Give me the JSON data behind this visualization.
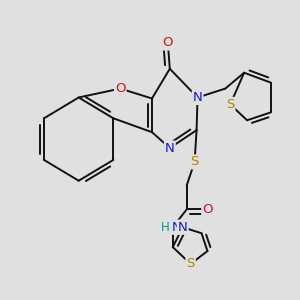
{
  "bg_color": "#e0e0e0",
  "bond_color": "#111111",
  "bond_width": 1.4,
  "colors": {
    "C": "#111111",
    "N": "#1a1acc",
    "O": "#cc1a1a",
    "S": "#aa8800",
    "H": "#109090"
  },
  "fig_width": 3.0,
  "fig_height": 3.0,
  "dpi": 100
}
